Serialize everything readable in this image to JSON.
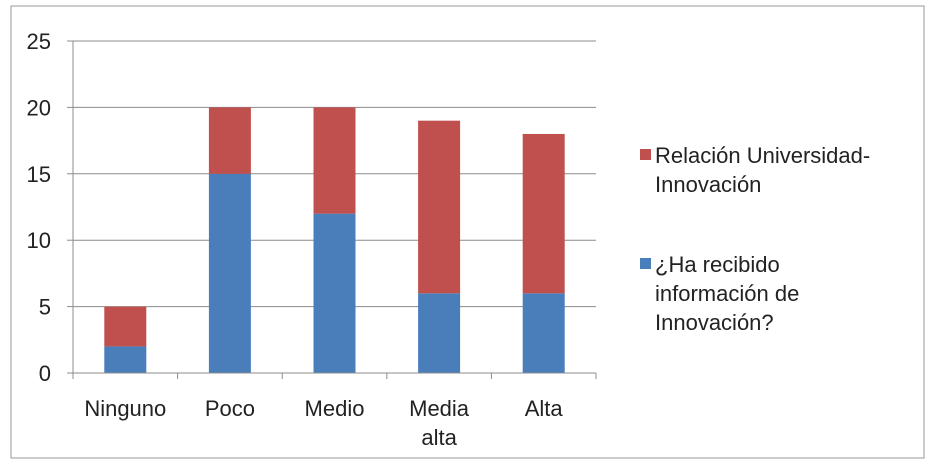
{
  "chart_data": {
    "type": "bar",
    "stacked": true,
    "categories": [
      [
        "Ninguno"
      ],
      [
        "Poco"
      ],
      [
        "Medio"
      ],
      [
        "Media",
        "alta"
      ],
      [
        "Alta"
      ]
    ],
    "series": [
      {
        "name": "¿Ha recibido información de Innovación?",
        "color": "#4a7ebb",
        "values": [
          2,
          15,
          12,
          6,
          6
        ]
      },
      {
        "name": "Relación Universidad-Innovación",
        "color": "#c0504d",
        "values": [
          3,
          5,
          8,
          13,
          12
        ]
      }
    ],
    "ylim": [
      0,
      25
    ],
    "yticks": [
      "0",
      "5",
      "10",
      "15",
      "20",
      "25"
    ],
    "grid": true,
    "legend_position": "right"
  },
  "legend": {
    "items": [
      {
        "name": "Relación Universidad-Innovación",
        "color": "#c0504d",
        "lines": [
          "Relación Universidad-",
          "Innovación"
        ]
      },
      {
        "name": "¿Ha recibido información de Innovación?",
        "color": "#4a7ebb",
        "lines": [
          "¿Ha recibido",
          "información de",
          "Innovación?"
        ]
      }
    ]
  }
}
